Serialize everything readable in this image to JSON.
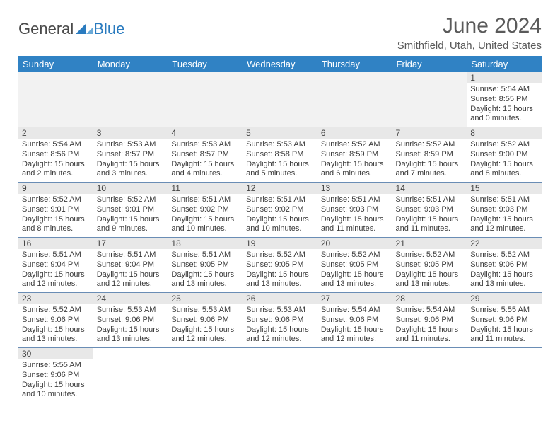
{
  "logo": {
    "text1": "General",
    "text2": "Blue"
  },
  "title": "June 2024",
  "location": "Smithfield, Utah, United States",
  "dayHeaders": [
    "Sunday",
    "Monday",
    "Tuesday",
    "Wednesday",
    "Thursday",
    "Friday",
    "Saturday"
  ],
  "colors": {
    "header_bg": "#3082c4",
    "header_text": "#ffffff",
    "daynum_bg": "#e8e8e8",
    "row_border": "#6a8db5",
    "title_color": "#5a5a5a"
  },
  "cells": [
    [
      null,
      null,
      null,
      null,
      null,
      null,
      {
        "n": "1",
        "sr": "5:54 AM",
        "ss": "8:55 PM",
        "dlh": "15",
        "dlm": "0"
      }
    ],
    [
      {
        "n": "2",
        "sr": "5:54 AM",
        "ss": "8:56 PM",
        "dlh": "15",
        "dlm": "2"
      },
      {
        "n": "3",
        "sr": "5:53 AM",
        "ss": "8:57 PM",
        "dlh": "15",
        "dlm": "3"
      },
      {
        "n": "4",
        "sr": "5:53 AM",
        "ss": "8:57 PM",
        "dlh": "15",
        "dlm": "4"
      },
      {
        "n": "5",
        "sr": "5:53 AM",
        "ss": "8:58 PM",
        "dlh": "15",
        "dlm": "5"
      },
      {
        "n": "6",
        "sr": "5:52 AM",
        "ss": "8:59 PM",
        "dlh": "15",
        "dlm": "6"
      },
      {
        "n": "7",
        "sr": "5:52 AM",
        "ss": "8:59 PM",
        "dlh": "15",
        "dlm": "7"
      },
      {
        "n": "8",
        "sr": "5:52 AM",
        "ss": "9:00 PM",
        "dlh": "15",
        "dlm": "8"
      }
    ],
    [
      {
        "n": "9",
        "sr": "5:52 AM",
        "ss": "9:01 PM",
        "dlh": "15",
        "dlm": "8"
      },
      {
        "n": "10",
        "sr": "5:52 AM",
        "ss": "9:01 PM",
        "dlh": "15",
        "dlm": "9"
      },
      {
        "n": "11",
        "sr": "5:51 AM",
        "ss": "9:02 PM",
        "dlh": "15",
        "dlm": "10"
      },
      {
        "n": "12",
        "sr": "5:51 AM",
        "ss": "9:02 PM",
        "dlh": "15",
        "dlm": "10"
      },
      {
        "n": "13",
        "sr": "5:51 AM",
        "ss": "9:03 PM",
        "dlh": "15",
        "dlm": "11"
      },
      {
        "n": "14",
        "sr": "5:51 AM",
        "ss": "9:03 PM",
        "dlh": "15",
        "dlm": "11"
      },
      {
        "n": "15",
        "sr": "5:51 AM",
        "ss": "9:03 PM",
        "dlh": "15",
        "dlm": "12"
      }
    ],
    [
      {
        "n": "16",
        "sr": "5:51 AM",
        "ss": "9:04 PM",
        "dlh": "15",
        "dlm": "12"
      },
      {
        "n": "17",
        "sr": "5:51 AM",
        "ss": "9:04 PM",
        "dlh": "15",
        "dlm": "12"
      },
      {
        "n": "18",
        "sr": "5:51 AM",
        "ss": "9:05 PM",
        "dlh": "15",
        "dlm": "13"
      },
      {
        "n": "19",
        "sr": "5:52 AM",
        "ss": "9:05 PM",
        "dlh": "15",
        "dlm": "13"
      },
      {
        "n": "20",
        "sr": "5:52 AM",
        "ss": "9:05 PM",
        "dlh": "15",
        "dlm": "13"
      },
      {
        "n": "21",
        "sr": "5:52 AM",
        "ss": "9:05 PM",
        "dlh": "15",
        "dlm": "13"
      },
      {
        "n": "22",
        "sr": "5:52 AM",
        "ss": "9:06 PM",
        "dlh": "15",
        "dlm": "13"
      }
    ],
    [
      {
        "n": "23",
        "sr": "5:52 AM",
        "ss": "9:06 PM",
        "dlh": "15",
        "dlm": "13"
      },
      {
        "n": "24",
        "sr": "5:53 AM",
        "ss": "9:06 PM",
        "dlh": "15",
        "dlm": "13"
      },
      {
        "n": "25",
        "sr": "5:53 AM",
        "ss": "9:06 PM",
        "dlh": "15",
        "dlm": "12"
      },
      {
        "n": "26",
        "sr": "5:53 AM",
        "ss": "9:06 PM",
        "dlh": "15",
        "dlm": "12"
      },
      {
        "n": "27",
        "sr": "5:54 AM",
        "ss": "9:06 PM",
        "dlh": "15",
        "dlm": "12"
      },
      {
        "n": "28",
        "sr": "5:54 AM",
        "ss": "9:06 PM",
        "dlh": "15",
        "dlm": "11"
      },
      {
        "n": "29",
        "sr": "5:55 AM",
        "ss": "9:06 PM",
        "dlh": "15",
        "dlm": "11"
      }
    ],
    [
      {
        "n": "30",
        "sr": "5:55 AM",
        "ss": "9:06 PM",
        "dlh": "15",
        "dlm": "10"
      },
      null,
      null,
      null,
      null,
      null,
      null
    ]
  ],
  "labels": {
    "sunrise": "Sunrise:",
    "sunset": "Sunset:",
    "daylight_prefix": "Daylight:",
    "hours_word": "hours",
    "and_word": "and",
    "minutes_word": "minutes."
  }
}
